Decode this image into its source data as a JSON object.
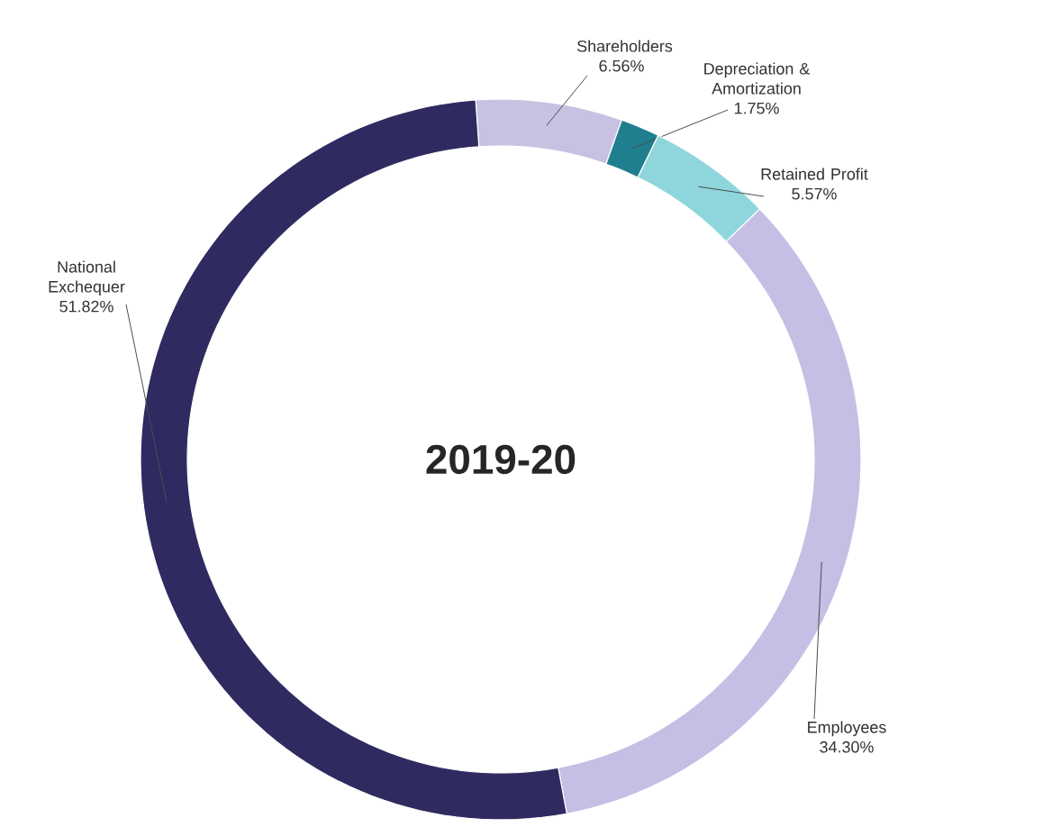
{
  "chart_data": {
    "type": "donut",
    "title": "2019-20",
    "categories": [
      "Shareholders",
      "Depreciation & Amortization",
      "Retained Profit",
      "Employees",
      "National Exchequer"
    ],
    "values": [
      6.56,
      1.75,
      5.57,
      34.3,
      51.82
    ],
    "value_labels": [
      "6.56%",
      "1.75%",
      "5.57%",
      "34.30%",
      "51.82%"
    ],
    "colors": [
      "#c9c1e2",
      "#1f7f8e",
      "#8ed6dc",
      "#c6bee4",
      "#2f2b60"
    ]
  }
}
